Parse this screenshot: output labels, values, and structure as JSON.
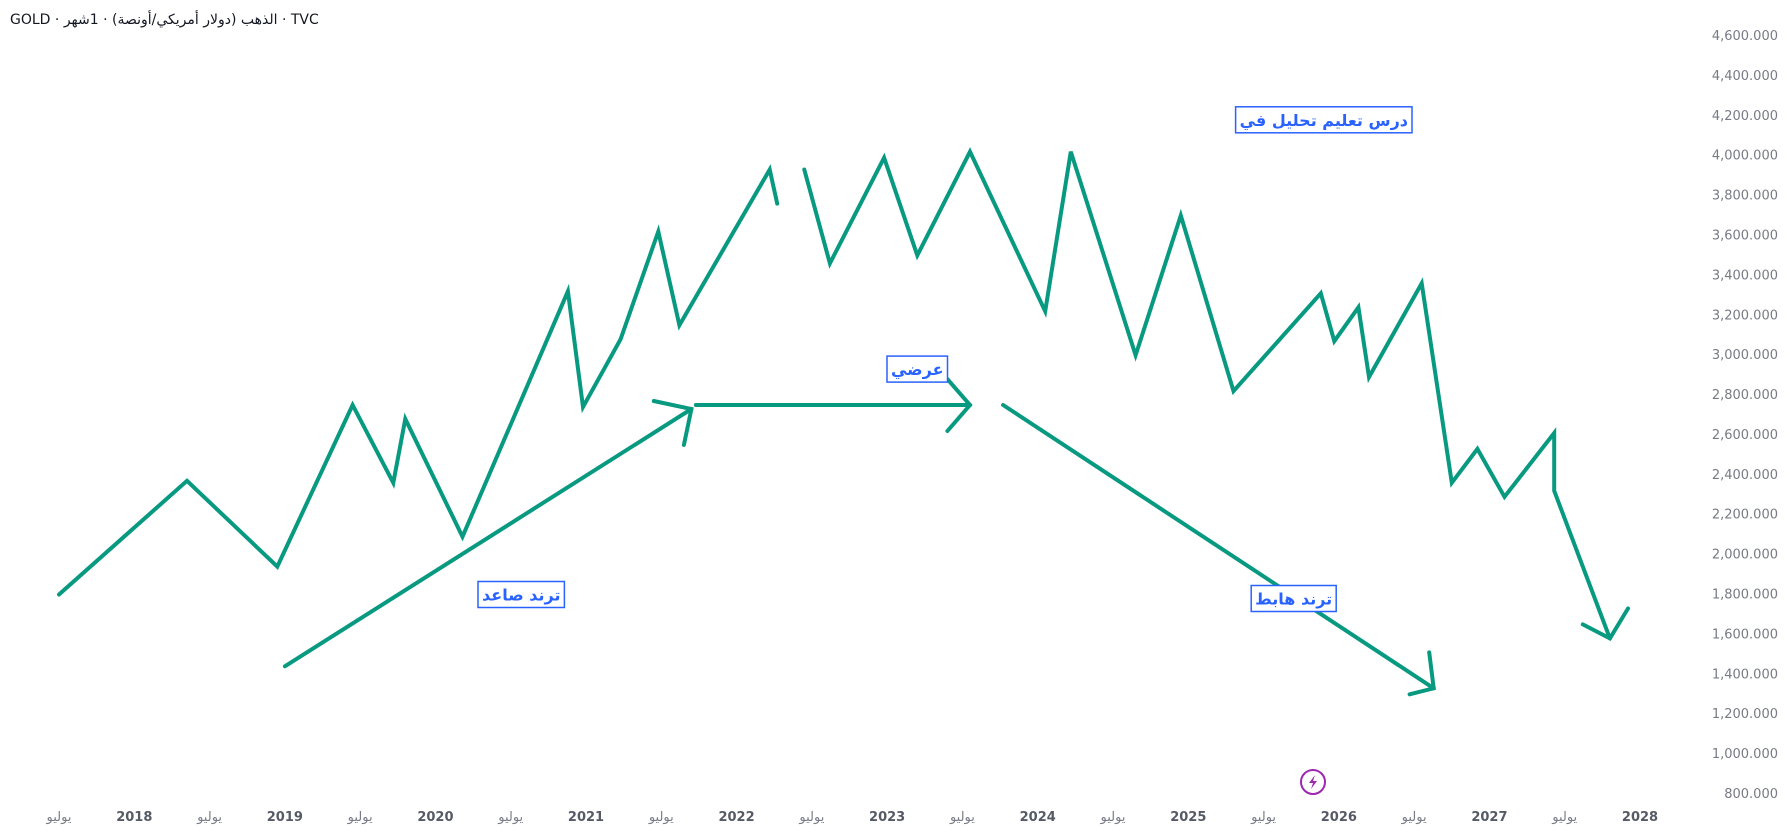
{
  "header": {
    "title": "GOLD · الذهب (دولار أمريكي/أونصة) · 1شهر · TVC"
  },
  "colors": {
    "line": "#089981",
    "label": "#2962ff",
    "axis_text": "#787b86",
    "flash": "#9c27b0"
  },
  "chart_data": {
    "type": "line",
    "y_axis": {
      "position": "right",
      "min": 800,
      "max": 4600,
      "step": 200,
      "tick_labels": [
        "4,600.000",
        "4,400.000",
        "4,200.000",
        "4,000.000",
        "3,800.000",
        "3,600.000",
        "3,400.000",
        "3,200.000",
        "3,000.000",
        "2,800.000",
        "2,600.000",
        "2,400.000",
        "2,200.000",
        "2,000.000",
        "1,800.000",
        "1,600.000",
        "1,400.000",
        "1,200.000",
        "1,000.000",
        "800.000"
      ]
    },
    "x_axis": {
      "tick_labels": [
        {
          "label": "يوليو",
          "x": 2017.5,
          "year": false
        },
        {
          "label": "2018",
          "x": 2018.0,
          "year": true
        },
        {
          "label": "يوليو",
          "x": 2018.5,
          "year": false
        },
        {
          "label": "2019",
          "x": 2019.0,
          "year": true
        },
        {
          "label": "يوليو",
          "x": 2019.5,
          "year": false
        },
        {
          "label": "2020",
          "x": 2020.0,
          "year": true
        },
        {
          "label": "يوليو",
          "x": 2020.5,
          "year": false
        },
        {
          "label": "2021",
          "x": 2021.0,
          "year": true
        },
        {
          "label": "يوليو",
          "x": 2021.5,
          "year": false
        },
        {
          "label": "2022",
          "x": 2022.0,
          "year": true
        },
        {
          "label": "يوليو",
          "x": 2022.5,
          "year": false
        },
        {
          "label": "2023",
          "x": 2023.0,
          "year": true
        },
        {
          "label": "يوليو",
          "x": 2023.5,
          "year": false
        },
        {
          "label": "2024",
          "x": 2024.0,
          "year": true
        },
        {
          "label": "يوليو",
          "x": 2024.5,
          "year": false
        },
        {
          "label": "2025",
          "x": 2025.0,
          "year": true
        },
        {
          "label": "يوليو",
          "x": 2025.5,
          "year": false
        },
        {
          "label": "2026",
          "x": 2026.0,
          "year": true
        },
        {
          "label": "يوليو",
          "x": 2026.5,
          "year": false
        },
        {
          "label": "2027",
          "x": 2027.0,
          "year": true
        },
        {
          "label": "يوليو",
          "x": 2027.5,
          "year": false
        },
        {
          "label": "2028",
          "x": 2028.0,
          "year": true
        }
      ]
    },
    "drawings": [
      {
        "name": "zigzag-uptrend",
        "points": [
          [
            2017.5,
            1800
          ],
          [
            2018.35,
            2370
          ],
          [
            2018.95,
            1940
          ],
          [
            2019.45,
            2750
          ],
          [
            2019.72,
            2360
          ],
          [
            2019.8,
            2680
          ],
          [
            2020.18,
            2090
          ],
          [
            2020.88,
            3320
          ],
          [
            2020.98,
            2740
          ],
          [
            2021.23,
            3080
          ],
          [
            2021.48,
            3620
          ],
          [
            2021.62,
            3150
          ],
          [
            2022.22,
            3930
          ],
          [
            2022.27,
            3760
          ]
        ]
      },
      {
        "name": "zigzag-range",
        "points": [
          [
            2022.45,
            3930
          ],
          [
            2022.62,
            3460
          ],
          [
            2022.98,
            3990
          ],
          [
            2023.2,
            3500
          ],
          [
            2023.55,
            4020
          ],
          [
            2024.05,
            3220
          ],
          [
            2024.22,
            4020
          ],
          [
            2024.65,
            3000
          ],
          [
            2024.95,
            3700
          ],
          [
            2025.3,
            2820
          ],
          [
            2025.88,
            3310
          ],
          [
            2025.97,
            3070
          ],
          [
            2026.13,
            3240
          ],
          [
            2026.2,
            2890
          ],
          [
            2026.55,
            3360
          ],
          [
            2026.75,
            2360
          ],
          [
            2026.92,
            2530
          ],
          [
            2027.1,
            2290
          ],
          [
            2027.43,
            2610
          ],
          [
            2027.43,
            2320
          ],
          [
            2027.8,
            1580
          ]
        ]
      },
      {
        "name": "zigzag-end-arrowhead",
        "points": [
          [
            2027.62,
            1650
          ],
          [
            2027.8,
            1580
          ],
          [
            2027.92,
            1730
          ]
        ]
      },
      {
        "name": "uptrend-arrow",
        "points": [
          [
            2019.0,
            1440
          ],
          [
            2021.7,
            2730
          ]
        ],
        "head": [
          [
            2021.45,
            2770
          ],
          [
            2021.7,
            2730
          ],
          [
            2021.65,
            2550
          ]
        ]
      },
      {
        "name": "range-arrow",
        "points": [
          [
            2021.73,
            2750
          ],
          [
            2023.55,
            2750
          ]
        ],
        "head": [
          [
            2023.4,
            2880
          ],
          [
            2023.55,
            2750
          ],
          [
            2023.4,
            2620
          ]
        ]
      },
      {
        "name": "downtrend-arrow",
        "points": [
          [
            2023.77,
            2750
          ],
          [
            2026.63,
            1330
          ]
        ],
        "head": [
          [
            2026.47,
            1300
          ],
          [
            2026.63,
            1330
          ],
          [
            2026.6,
            1510
          ]
        ]
      }
    ],
    "annotations": [
      {
        "name": "label-lesson",
        "text": "درس تعليم تحليل في",
        "x": 2025.9,
        "y": 4180
      },
      {
        "name": "label-range",
        "text": "عرضي",
        "x": 2023.2,
        "y": 2930
      },
      {
        "name": "label-uptrend",
        "text": "ترند صاعد",
        "x": 2020.57,
        "y": 1800
      },
      {
        "name": "label-downtrend",
        "text": "ترند هابط",
        "x": 2025.7,
        "y": 1780
      }
    ]
  }
}
